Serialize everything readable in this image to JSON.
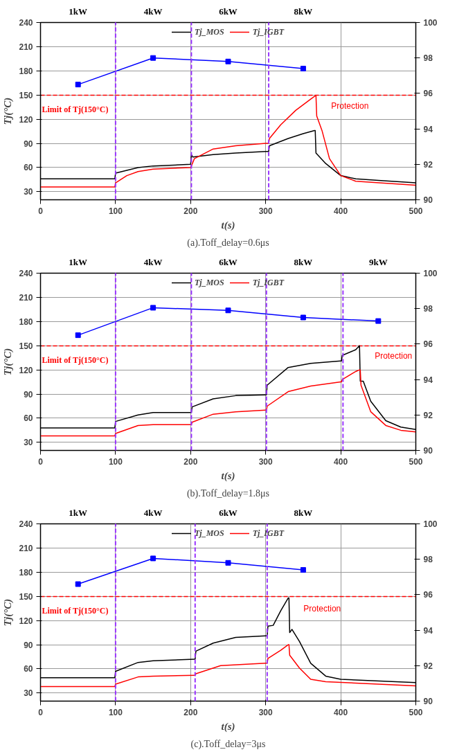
{
  "chart_data": [
    {
      "type": "line",
      "title": "(a).Toff_delay=0.6μs",
      "xlabel": "t(s)",
      "ylabel": "Tj(°C)",
      "xlim": [
        0,
        500
      ],
      "xticks": [
        0,
        100,
        200,
        300,
        400,
        500
      ],
      "ylim": [
        20,
        240
      ],
      "yticks": [
        30,
        60,
        90,
        120,
        150,
        180,
        210,
        240
      ],
      "y2lim": [
        90,
        100
      ],
      "y2ticks": [
        90,
        92,
        94,
        96,
        98,
        100
      ],
      "grid": true,
      "legend": "top",
      "series": [
        {
          "name": "Tj_MOS",
          "color": "#000000",
          "x": [
            0,
            99,
            100,
            130,
            150,
            200,
            201,
            203,
            230,
            260,
            300,
            304,
            305,
            330,
            350,
            365,
            366,
            367,
            380,
            400,
            420,
            450,
            500
          ],
          "values": [
            46,
            46,
            53,
            60,
            62,
            64,
            76,
            73,
            76,
            78,
            80,
            80,
            87,
            96,
            102,
            106,
            106,
            78,
            65,
            50,
            46,
            44,
            41
          ]
        },
        {
          "name": "Tj_IGBT",
          "color": "#ff0000",
          "x": [
            0,
            99,
            100,
            115,
            130,
            150,
            200,
            201,
            205,
            230,
            260,
            300,
            304,
            305,
            320,
            340,
            360,
            366,
            367,
            368,
            375,
            385,
            400,
            420,
            500
          ],
          "values": [
            36,
            36,
            41,
            50,
            55,
            58,
            60,
            62,
            71,
            83,
            87,
            90,
            90,
            96,
            113,
            131,
            145,
            149,
            149,
            124,
            106,
            71,
            50,
            43,
            38
          ]
        },
        {
          "color": "#0000ff",
          "axis": "y2",
          "marker": "square",
          "x": [
            50,
            150,
            250,
            350
          ],
          "values": [
            96.5,
            98.0,
            97.8,
            97.4
          ]
        }
      ],
      "ref_lines": [
        {
          "axis": "y",
          "value": 150,
          "label": "Limit of Tj(150°C)",
          "color": "#ff0000",
          "line_style": "dashed"
        },
        {
          "axis": "x",
          "value": 100,
          "color": "#9933ff",
          "line_style": "dashed"
        },
        {
          "axis": "x",
          "value": 201,
          "color": "#9934ff",
          "line_style": "dashed"
        },
        {
          "axis": "x",
          "value": 304,
          "color": "#9935ff",
          "line_style": "dashed"
        }
      ],
      "annotations": [
        "1kW",
        "4kW",
        "6kW",
        "8kW",
        {
          "text": "Protection",
          "x": 367,
          "y": 149
        }
      ]
    },
    {
      "type": "line",
      "title": "(b).Toff_delay=1.8μs",
      "xlabel": "t(s)",
      "ylabel": "Tj(°C)",
      "xlim": [
        0,
        500
      ],
      "xticks": [
        0,
        100,
        200,
        300,
        400,
        500
      ],
      "ylim": [
        20,
        240
      ],
      "yticks": [
        30,
        60,
        90,
        120,
        150,
        180,
        210,
        240
      ],
      "y2lim": [
        90,
        100
      ],
      "y2ticks": [
        90,
        92,
        94,
        96,
        98,
        100
      ],
      "grid": true,
      "legend": "top",
      "series": [
        {
          "name": "Tj_MOS",
          "color": "#000000",
          "x": [
            0,
            99,
            100,
            130,
            150,
            200,
            201,
            202,
            230,
            260,
            300,
            301,
            302,
            330,
            360,
            400,
            401,
            402,
            420,
            425,
            426,
            430,
            440,
            460,
            480,
            500
          ],
          "values": [
            48,
            48,
            56,
            64,
            67,
            67,
            67,
            74,
            84,
            88,
            89,
            89,
            101,
            123,
            128,
            131,
            131,
            138,
            145,
            150,
            106,
            106,
            81,
            57,
            49,
            46
          ]
        },
        {
          "name": "Tj_IGBT",
          "color": "#ff0000",
          "x": [
            0,
            99,
            100,
            130,
            150,
            200,
            201,
            202,
            230,
            260,
            300,
            301,
            302,
            330,
            360,
            400,
            401,
            402,
            420,
            425,
            426,
            427,
            440,
            460,
            480,
            500
          ],
          "values": [
            38,
            38,
            41,
            51,
            52,
            52,
            52,
            55,
            65,
            68,
            70,
            70,
            75,
            93,
            100,
            105,
            105,
            108,
            118,
            120,
            120,
            101,
            68,
            51,
            45,
            43
          ]
        },
        {
          "color": "#0000ff",
          "axis": "y2",
          "marker": "square",
          "x": [
            50,
            150,
            250,
            350,
            450
          ],
          "values": [
            96.5,
            98.05,
            97.9,
            97.5,
            97.3
          ]
        }
      ],
      "ref_lines": [
        {
          "axis": "y",
          "value": 150,
          "label": "Limit of Tj(150°C)",
          "color": "#ff0000",
          "line_style": "dashed"
        },
        {
          "axis": "x",
          "value": 100,
          "color": "#9933ff",
          "line_style": "dashed"
        },
        {
          "axis": "x",
          "value": 201,
          "color": "#9934ff",
          "line_style": "dashed"
        },
        {
          "axis": "x",
          "value": 301,
          "color": "#9935ff",
          "line_style": "dashed"
        },
        {
          "axis": "x",
          "value": 403,
          "color": "#9936ff",
          "line_style": "dashed"
        }
      ],
      "annotations": [
        "1kW",
        "4kW",
        "6kW",
        "8kW",
        "9kW",
        {
          "text": "Protection",
          "x": 425,
          "y": 150
        }
      ]
    },
    {
      "type": "line",
      "title": "(c).Toff_delay=3μs",
      "xlabel": "t(s)",
      "ylabel": "Tj(°C)",
      "xlim": [
        0,
        500
      ],
      "xticks": [
        0,
        100,
        200,
        300,
        400,
        500
      ],
      "ylim": [
        20,
        240
      ],
      "yticks": [
        30,
        60,
        90,
        120,
        150,
        180,
        210,
        240
      ],
      "y2lim": [
        90,
        100
      ],
      "y2ticks": [
        90,
        92,
        94,
        96,
        98,
        100
      ],
      "grid": true,
      "legend": "top",
      "series": [
        {
          "name": "Tj_MOS",
          "color": "#000000",
          "x": [
            0,
            99,
            100,
            130,
            150,
            205,
            206,
            207,
            230,
            260,
            300,
            302,
            303,
            310,
            320,
            330,
            331,
            332,
            335,
            345,
            360,
            380,
            400,
            500
          ],
          "values": [
            49,
            49,
            57,
            68,
            70,
            72,
            72,
            82,
            92,
            99,
            101,
            101,
            113,
            114,
            132,
            148,
            148,
            105,
            109,
            94,
            67,
            51,
            47,
            43
          ]
        },
        {
          "name": "Tj_IGBT",
          "color": "#ff0000",
          "x": [
            0,
            99,
            100,
            130,
            150,
            205,
            206,
            207,
            240,
            300,
            302,
            303,
            320,
            330,
            331,
            332,
            345,
            360,
            380,
            500
          ],
          "values": [
            38,
            38,
            41,
            50,
            51,
            52,
            52,
            54,
            64,
            67,
            67,
            73,
            83,
            90,
            90,
            77,
            61,
            47,
            44,
            39
          ]
        },
        {
          "color": "#0000ff",
          "axis": "y2",
          "marker": "square",
          "x": [
            50,
            150,
            250,
            350
          ],
          "values": [
            96.6,
            98.05,
            97.8,
            97.4
          ]
        }
      ],
      "ref_lines": [
        {
          "axis": "y",
          "value": 150,
          "label": "Limit of Tj(150°C)",
          "color": "#ff0000",
          "line_style": "dashed"
        },
        {
          "axis": "x",
          "value": 100,
          "color": "#9933ff",
          "line_style": "dashed"
        },
        {
          "axis": "x",
          "value": 206,
          "color": "#9934ff",
          "line_style": "dashed"
        },
        {
          "axis": "x",
          "value": 302,
          "color": "#9935ff",
          "line_style": "dashed"
        }
      ],
      "annotations": [
        "1kW",
        "4kW",
        "6kW",
        "8kW",
        {
          "text": "Protection",
          "x": 330,
          "y": 148
        }
      ]
    }
  ]
}
